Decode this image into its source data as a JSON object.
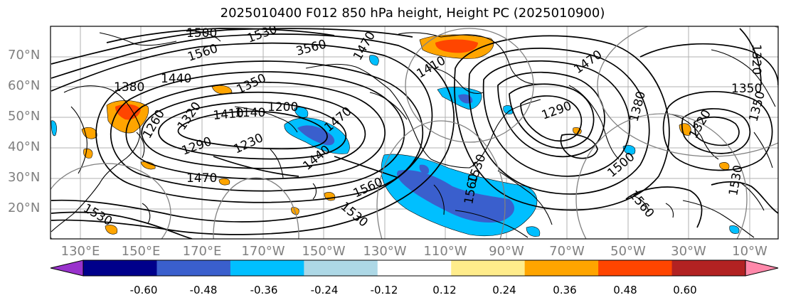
{
  "title": "2025010400 F012 850 hPa height, Height PC (2025010900)",
  "lat_labels": [
    "70°N",
    "60°N",
    "50°N",
    "40°N",
    "30°N",
    "20°N"
  ],
  "lon_labels": [
    "130°E",
    "150°E",
    "170°E",
    "170°W",
    "150°W",
    "130°W",
    "110°W",
    "90°W",
    "70°W",
    "50°W",
    "30°W",
    "10°W"
  ],
  "contour_labels": [
    "1500",
    "1530",
    "1560",
    "3560",
    "1470",
    "1440",
    "1380",
    "1350",
    "1410",
    "1140",
    "1200",
    "1230",
    "1290",
    "1260",
    "1320",
    "1470",
    "1530",
    "1560",
    "1530",
    "1500",
    "1560",
    "1470",
    "1350",
    "1410",
    "1290",
    "1320",
    "1350",
    "1380",
    "1440",
    "1470",
    "1320",
    "1530",
    "1560",
    "1530"
  ],
  "colorbar": {
    "colors": [
      "#9932cc",
      "#00008b",
      "#3a5fcd",
      "#00bfff",
      "#add8e6",
      "#ffffff",
      "#ffec8b",
      "#ffa500",
      "#ff4500",
      "#b22222",
      "#ff88aa"
    ],
    "tick_labels": [
      "-0.60",
      "-0.48",
      "-0.36",
      "-0.24",
      "-0.12",
      "0.12",
      "0.24",
      "0.36",
      "0.48",
      "0.60"
    ]
  },
  "colors": {
    "land": "#ffffff",
    "contour": "#000000",
    "grid": "#b0b0b0"
  }
}
